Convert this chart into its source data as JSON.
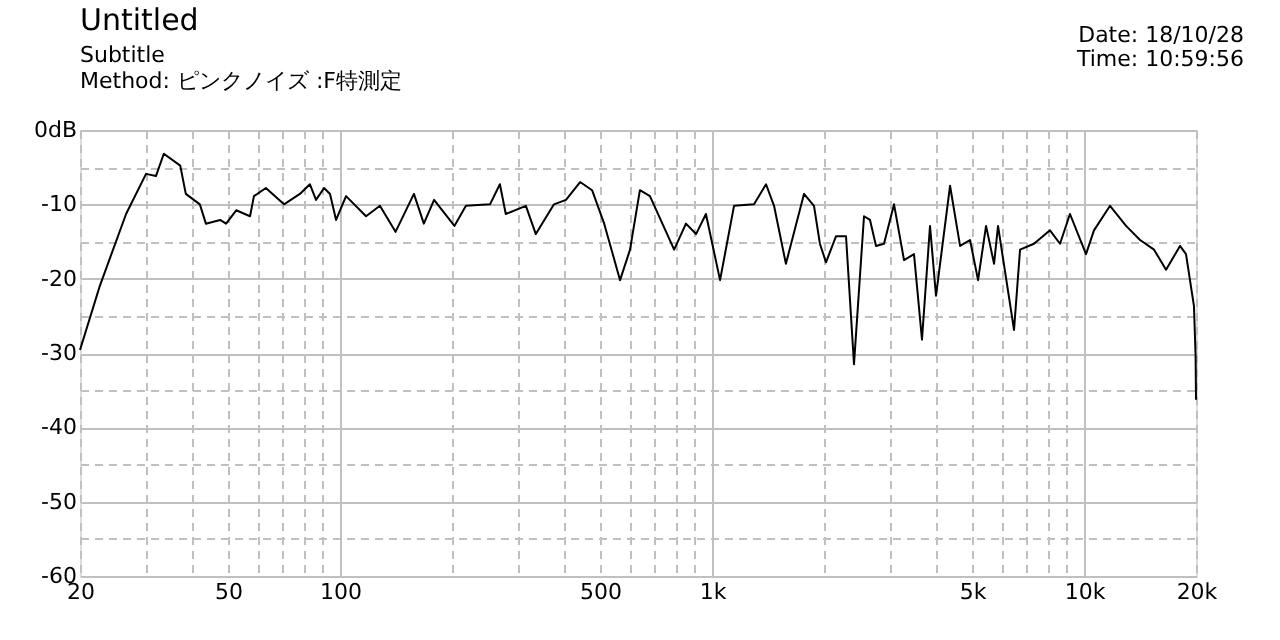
{
  "chart_data": {
    "type": "line",
    "title": "Untitled",
    "subtitle": "Subtitle",
    "annotations": [
      "Method: ピンクノイズ :F特測定",
      "Date: 18/10/28",
      "Time: 10:59:56"
    ],
    "x": [
      20,
      22.6,
      26.6,
      30.1,
      32,
      33.6,
      37.2,
      38.5,
      42,
      43.6,
      47.6,
      49.4,
      52.6,
      57.3,
      58.7,
      63.2,
      70.7,
      78,
      83,
      86.2,
      90.6,
      94,
      97.6,
      103.8,
      117.5,
      128,
      141,
      158,
      168,
      179,
      203,
      218,
      253,
      269,
      279,
      316,
      336,
      376,
      405,
      442,
      476,
      513,
      566,
      602,
      640,
      681,
      791,
      851,
      906,
      963,
      1051,
      1146,
      1297,
      1397,
      1468,
      1580,
      1767,
      1880,
      1950,
      2025,
      2154,
      2292,
      2408,
      2562,
      2659,
      2760,
      2900,
      3085,
      3282,
      3491,
      3668,
      3855,
      4000,
      4364,
      4643,
      4939,
      5190,
      5453,
      5730,
      5873,
      6484,
      6730,
      7336,
      8101,
      8619,
      9168,
      10124,
      10636,
      11748,
      12973,
      14146,
      15425,
      16615,
      18116,
      18800,
      19750,
      19950,
      20000
    ],
    "series": [
      {
        "color": "#000000",
        "values": [
          -29.6,
          -21.0,
          -11.3,
          -5.9,
          -6.2,
          -3.2,
          -4.8,
          -8.6,
          -10.0,
          -12.6,
          -12.1,
          -12.6,
          -10.8,
          -11.6,
          -8.9,
          -7.8,
          -10.0,
          -8.6,
          -7.3,
          -9.4,
          -7.8,
          -8.6,
          -12.1,
          -8.9,
          -11.6,
          -10.2,
          -13.7,
          -8.6,
          -12.6,
          -9.4,
          -12.9,
          -10.2,
          -10.0,
          -7.3,
          -11.3,
          -10.2,
          -14.0,
          -10.0,
          -9.4,
          -7.0,
          -8.1,
          -12.6,
          -20.2,
          -16.1,
          -8.1,
          -8.9,
          -16.1,
          -12.6,
          -14.0,
          -11.3,
          -20.2,
          -10.2,
          -10.0,
          -7.3,
          -10.2,
          -18.0,
          -8.6,
          -10.2,
          -15.3,
          -17.8,
          -14.3,
          -14.3,
          -31.5,
          -11.6,
          -12.1,
          -15.6,
          -15.3,
          -10.0,
          -17.5,
          -16.7,
          -28.2,
          -12.9,
          -22.3,
          -7.5,
          -15.6,
          -14.8,
          -20.2,
          -12.9,
          -18.0,
          -12.9,
          -26.9,
          -16.1,
          -15.3,
          -13.5,
          -15.3,
          -11.3,
          -16.7,
          -13.5,
          -10.2,
          -12.9,
          -14.8,
          -16.1,
          -18.8,
          -15.6,
          -16.7,
          -23.7,
          -30.4,
          -36.3
        ]
      }
    ],
    "log": "x",
    "xlim": [
      20,
      20000
    ],
    "xticks": [
      20,
      {
        "value": 30,
        "label": null
      },
      {
        "value": 40,
        "label": null
      },
      50,
      {
        "value": 60,
        "label": null
      },
      {
        "value": 70,
        "label": null
      },
      {
        "value": 80,
        "label": null
      },
      {
        "value": 90,
        "label": null
      },
      100,
      {
        "value": 200,
        "label": null
      },
      {
        "value": 300,
        "label": null
      },
      {
        "value": 400,
        "label": null
      },
      500,
      {
        "value": 600,
        "label": null
      },
      {
        "value": 700,
        "label": null
      },
      {
        "value": 800,
        "label": null
      },
      {
        "value": 900,
        "label": null
      },
      {
        "value": 1000,
        "label": "1k"
      },
      {
        "value": 2000,
        "label": null
      },
      {
        "value": 3000,
        "label": null
      },
      {
        "value": 4000,
        "label": null
      },
      {
        "value": 5000,
        "label": "5k"
      },
      {
        "value": 6000,
        "label": null
      },
      {
        "value": 7000,
        "label": null
      },
      {
        "value": 8000,
        "label": null
      },
      {
        "value": 9000,
        "label": null
      },
      {
        "value": 10000,
        "label": "10k"
      },
      {
        "value": 20000,
        "label": "20k"
      }
    ],
    "ylim": [
      -60,
      0
    ],
    "yticks": [
      {
        "value": 0,
        "label": "0dB"
      },
      {
        "value": -5,
        "label": null
      },
      -10,
      {
        "value": -15,
        "label": null
      },
      -20,
      {
        "value": -25,
        "label": null
      },
      -30,
      {
        "value": -35,
        "label": null
      },
      -40,
      {
        "value": -45,
        "label": null
      },
      -50,
      {
        "value": -55,
        "label": null
      },
      -60
    ],
    "grid": true,
    "marker": "none",
    "line_style": "solid"
  }
}
